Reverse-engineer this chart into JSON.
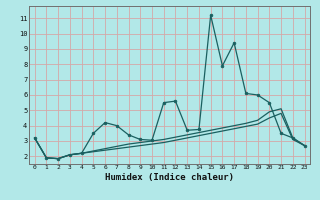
{
  "title": "",
  "xlabel": "Humidex (Indice chaleur)",
  "background_color": "#b2e8e8",
  "grid_color": "#d4a8a8",
  "line_color": "#1a6060",
  "x_data": [
    0,
    1,
    2,
    3,
    4,
    5,
    6,
    7,
    8,
    9,
    10,
    11,
    12,
    13,
    14,
    15,
    16,
    17,
    18,
    19,
    20,
    21,
    22,
    23
  ],
  "y_line1": [
    3.2,
    1.9,
    1.85,
    2.1,
    2.2,
    3.5,
    4.2,
    4.0,
    3.4,
    3.1,
    3.05,
    5.5,
    5.6,
    3.7,
    3.75,
    11.2,
    7.9,
    9.4,
    6.1,
    6.0,
    5.5,
    3.5,
    3.2,
    2.7
  ],
  "y_line2": [
    3.2,
    1.9,
    1.85,
    2.1,
    2.2,
    2.35,
    2.5,
    2.65,
    2.8,
    2.9,
    3.0,
    3.1,
    3.25,
    3.4,
    3.55,
    3.7,
    3.85,
    4.0,
    4.15,
    4.35,
    4.9,
    5.1,
    3.2,
    2.7
  ],
  "y_line3": [
    3.2,
    1.9,
    1.85,
    2.1,
    2.2,
    2.3,
    2.4,
    2.5,
    2.6,
    2.7,
    2.8,
    2.9,
    3.05,
    3.2,
    3.35,
    3.5,
    3.65,
    3.8,
    3.95,
    4.1,
    4.5,
    4.8,
    3.1,
    2.7
  ],
  "yticks": [
    2,
    3,
    4,
    5,
    6,
    7,
    8,
    9,
    10,
    11
  ],
  "xticks": [
    0,
    1,
    2,
    3,
    4,
    5,
    6,
    7,
    8,
    9,
    10,
    11,
    12,
    13,
    14,
    15,
    16,
    17,
    18,
    19,
    20,
    21,
    22,
    23
  ],
  "xlim": [
    -0.5,
    23.5
  ],
  "ylim": [
    1.5,
    11.8
  ]
}
